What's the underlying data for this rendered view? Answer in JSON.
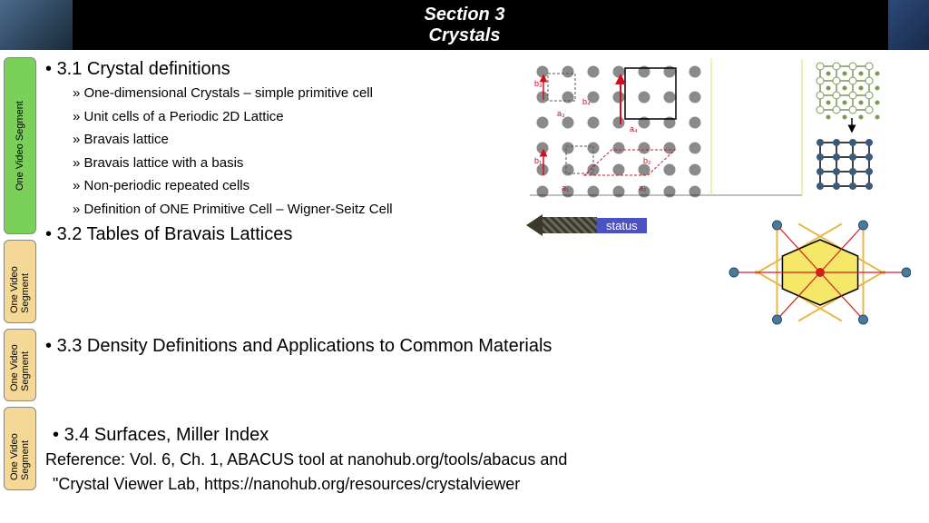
{
  "header": {
    "line1": "Section 3",
    "line2": "Crystals"
  },
  "sidebar": {
    "label": "One Video Segment",
    "count": 4,
    "bg_colors": [
      "#7bd05a",
      "#f6d896",
      "#f6d896",
      "#f6d896"
    ]
  },
  "section1": {
    "title": "3.1 Crystal definitions",
    "subs": [
      "One-dimensional Crystals – simple primitive cell",
      "Unit cells of a Periodic 2D Lattice",
      "Bravais lattice",
      "Bravais lattice with a basis",
      "Non-periodic repeated cells",
      "Definition of ONE Primitive Cell – Wigner-Seitz Cell"
    ]
  },
  "section2": {
    "title": "3.2 Tables of Bravais Lattices"
  },
  "section3": {
    "title": "3.3 Density Definitions and Applications to Common Materials"
  },
  "section4": {
    "title": "3.4 Surfaces, Miller Index"
  },
  "reference": {
    "line1": "Reference: Vol. 6, Ch. 1, ABACUS tool at nanohub.org/tools/abacus and",
    "line2": "\"Crystal Viewer Lab,  https://nanohub.org/resources/crystalviewer"
  },
  "status": {
    "label": "status"
  },
  "lattice_figure": {
    "atom_color": "#8a8a8a",
    "atom_radius": 6.5,
    "cell_outline_black": "#000000",
    "cell_outline_red": "#d01020",
    "cell_outline_dashed": "#555555",
    "bg": "#ffffff",
    "grid_rows": 4,
    "grid_cols": 6,
    "spacing": 28,
    "labels": [
      "a₁",
      "a₂",
      "a₃",
      "a₄",
      "b₁",
      "b₂",
      "b₃",
      "b₄"
    ],
    "label_color": "#c01020",
    "label_fontsize": 9,
    "right_panel": {
      "node_color_open": "#ffffff",
      "node_color_filled": "#3a5a7a",
      "edge_color": "#000000",
      "open_stroke": "#7a9a5a"
    }
  },
  "wigner_figure": {
    "hex_fill": "#f5e868",
    "hex_stroke": "#000000",
    "center_color": "#d02020",
    "neighbor_color": "#4a7a9a",
    "bond_color": "#d02020",
    "bisector_color": "#e8b848",
    "neighbor_count": 6,
    "cell_radius": 48
  }
}
